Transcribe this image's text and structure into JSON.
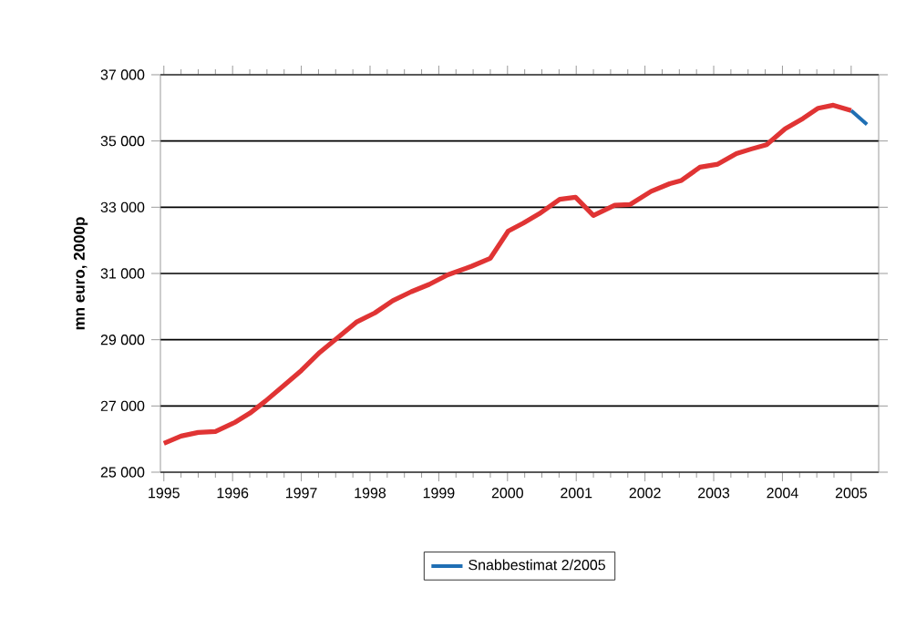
{
  "chart_data": {
    "type": "line",
    "ylabel": "mn euro, 2000p",
    "x": [
      1995.0,
      1995.25,
      1995.5,
      1995.75,
      1996.03,
      1996.25,
      1996.48,
      1996.74,
      1997.0,
      1997.27,
      1997.54,
      1997.8,
      1998.07,
      1998.33,
      1998.6,
      1998.86,
      1999.13,
      1999.48,
      1999.75,
      2000.01,
      2000.23,
      2000.46,
      2000.76,
      2000.99,
      2001.25,
      2001.56,
      2001.78,
      2002.09,
      2002.36,
      2002.53,
      2002.8,
      2003.06,
      2003.33,
      2003.55,
      2003.77,
      2004.04,
      2004.3,
      2004.52,
      2004.74,
      2005.0,
      2005.23
    ],
    "series": [
      {
        "color": "#e03434",
        "values": [
          25870,
          26090,
          26200,
          26230,
          26500,
          26780,
          27150,
          27610,
          28070,
          28620,
          29080,
          29530,
          29810,
          30180,
          30450,
          30670,
          30960,
          31220,
          31460,
          32280,
          32520,
          32800,
          33240,
          33300,
          32750,
          33060,
          33080,
          33480,
          33710,
          33810,
          34210,
          34300,
          34620,
          34760,
          34890,
          35370,
          35680,
          35990,
          36080,
          35920,
          null
        ]
      },
      {
        "name": "Snabbestimat 2/2005",
        "color": "#1f6fb4",
        "values": [
          null,
          null,
          null,
          null,
          null,
          null,
          null,
          null,
          null,
          null,
          null,
          null,
          null,
          null,
          null,
          null,
          null,
          null,
          null,
          null,
          null,
          null,
          null,
          null,
          null,
          null,
          null,
          null,
          null,
          null,
          null,
          null,
          null,
          null,
          null,
          null,
          null,
          null,
          null,
          35920,
          35500
        ]
      }
    ],
    "xlim": [
      1994.95,
      2005.4
    ],
    "xticks": [
      1995,
      1996,
      1997,
      1998,
      1999,
      2000,
      2001,
      2002,
      2003,
      2004,
      2005
    ],
    "ylim": [
      25000,
      37000
    ],
    "yticks": [
      {
        "value": 25000,
        "label": "25 000"
      },
      {
        "value": 27000,
        "label": "27 000"
      },
      {
        "value": 29000,
        "label": "29 000"
      },
      {
        "value": 31000,
        "label": "31 000"
      },
      {
        "value": 33000,
        "label": "33 000"
      },
      {
        "value": 35000,
        "label": "35 000"
      },
      {
        "value": 37000,
        "label": "37 000"
      }
    ],
    "grid": "y",
    "legend": "bottom",
    "marker": "none",
    "line_style": "solid"
  }
}
